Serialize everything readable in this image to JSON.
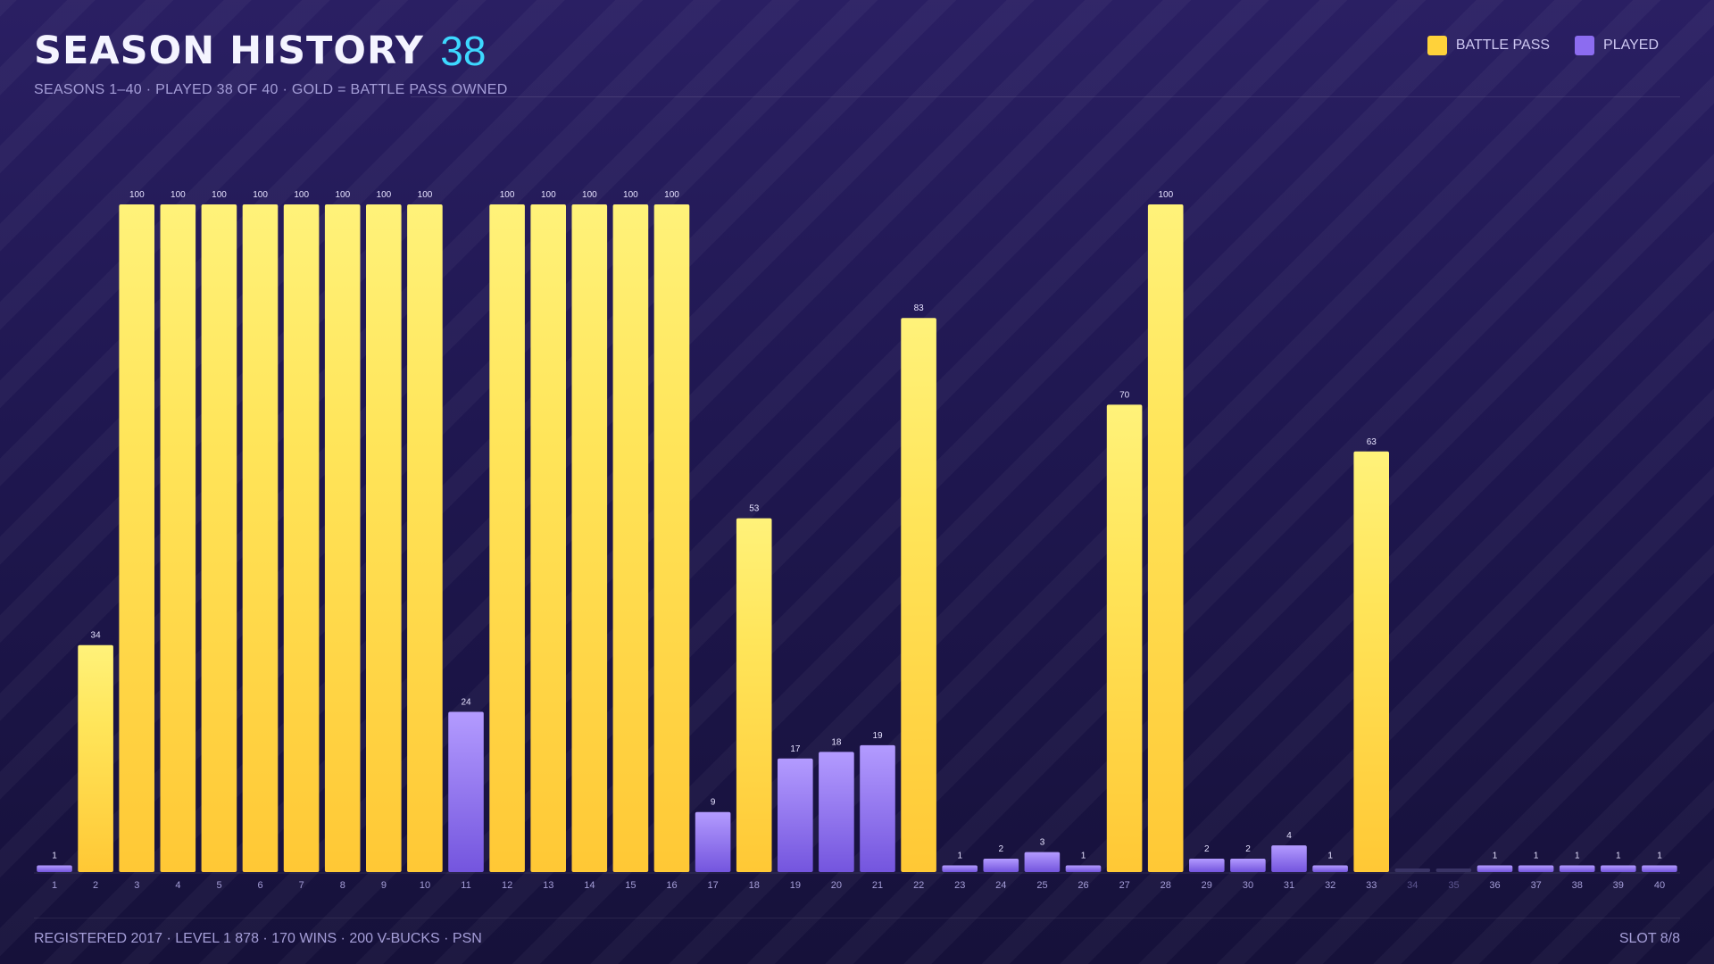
{
  "header": {
    "title": "SEASON HISTORY",
    "count": "38",
    "subtitle": "SEASONS 1–40  ·  PLAYED 38 OF 40  ·  GOLD = BATTLE PASS OWNED"
  },
  "legend": {
    "battle_pass": "BATTLE PASS",
    "played": "PLAYED"
  },
  "colors": {
    "battle_pass": "#ffd23a",
    "played": "#8c6cf0",
    "accent": "#3dd8ff",
    "unplayed": "#3a3466"
  },
  "footer": {
    "info": "REGISTERED 2017  ·  LEVEL 1 878  ·  170 WINS  ·  200 V-BUCKS  ·  PSN",
    "slot": "SLOT 8/8"
  },
  "chart_data": {
    "type": "bar",
    "categories": [
      "1",
      "2",
      "3",
      "4",
      "5",
      "6",
      "7",
      "8",
      "9",
      "10",
      "11",
      "12",
      "13",
      "14",
      "15",
      "16",
      "17",
      "18",
      "19",
      "20",
      "21",
      "22",
      "23",
      "24",
      "25",
      "26",
      "27",
      "28",
      "29",
      "30",
      "31",
      "32",
      "33",
      "34",
      "35",
      "36",
      "37",
      "38",
      "39",
      "40"
    ],
    "values": [
      1,
      34,
      100,
      100,
      100,
      100,
      100,
      100,
      100,
      100,
      24,
      100,
      100,
      100,
      100,
      100,
      9,
      53,
      17,
      18,
      19,
      83,
      1,
      2,
      3,
      1,
      70,
      100,
      2,
      2,
      4,
      1,
      63,
      0,
      0,
      1,
      1,
      1,
      1,
      1
    ],
    "battle_pass": [
      false,
      true,
      true,
      true,
      true,
      true,
      true,
      true,
      true,
      true,
      false,
      true,
      true,
      true,
      true,
      true,
      false,
      true,
      false,
      false,
      false,
      true,
      false,
      false,
      false,
      false,
      true,
      true,
      false,
      false,
      false,
      false,
      true,
      false,
      false,
      false,
      false,
      false,
      false,
      false
    ],
    "played": [
      true,
      true,
      true,
      true,
      true,
      true,
      true,
      true,
      true,
      true,
      true,
      true,
      true,
      true,
      true,
      true,
      true,
      true,
      true,
      true,
      true,
      true,
      true,
      true,
      true,
      true,
      true,
      true,
      true,
      true,
      true,
      true,
      true,
      false,
      false,
      true,
      true,
      true,
      true,
      true
    ],
    "ylim": [
      0,
      100
    ],
    "legend_position": "top-right",
    "grid": false
  }
}
